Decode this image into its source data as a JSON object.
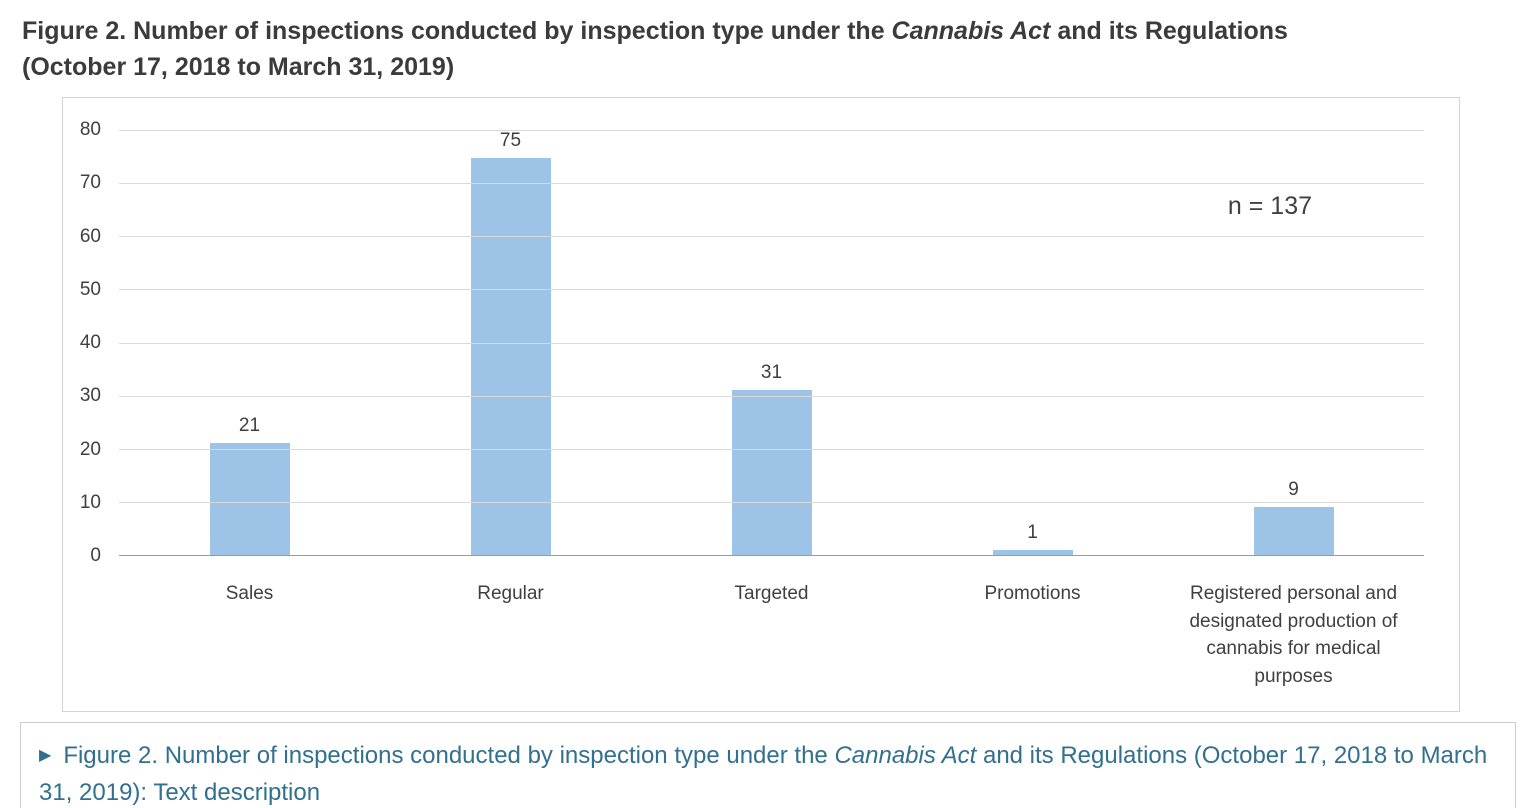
{
  "page": {
    "title": {
      "line1_prefix": "Figure 2. Number of inspections conducted by inspection type under the ",
      "line1_italic": "Cannabis Act",
      "line1_suffix": " and its Regulations",
      "line2": "(October 17, 2018 to March 31, 2019)"
    }
  },
  "chart_data": {
    "type": "bar",
    "categories": [
      "Sales",
      "Regular",
      "Targeted",
      "Promotions",
      "Registered personal and designated production of cannabis for medical purposes"
    ],
    "values": [
      21,
      75,
      31,
      1,
      9
    ],
    "annotation": "n = 137",
    "title": "",
    "xlabel": "",
    "ylabel": "",
    "ylim": [
      0,
      80
    ],
    "yticks": [
      0,
      10,
      20,
      30,
      40,
      50,
      60,
      70,
      80
    ],
    "grid": true,
    "legend": "none",
    "bar_color": "#9DC3E6"
  },
  "text_description": {
    "marker": "▶",
    "prefix": "Figure 2. Number of inspections conducted by inspection type under the ",
    "italic": "Cannabis Act",
    "suffix": " and its Regulations (October 17, 2018 to March 31, 2019): Text description"
  }
}
